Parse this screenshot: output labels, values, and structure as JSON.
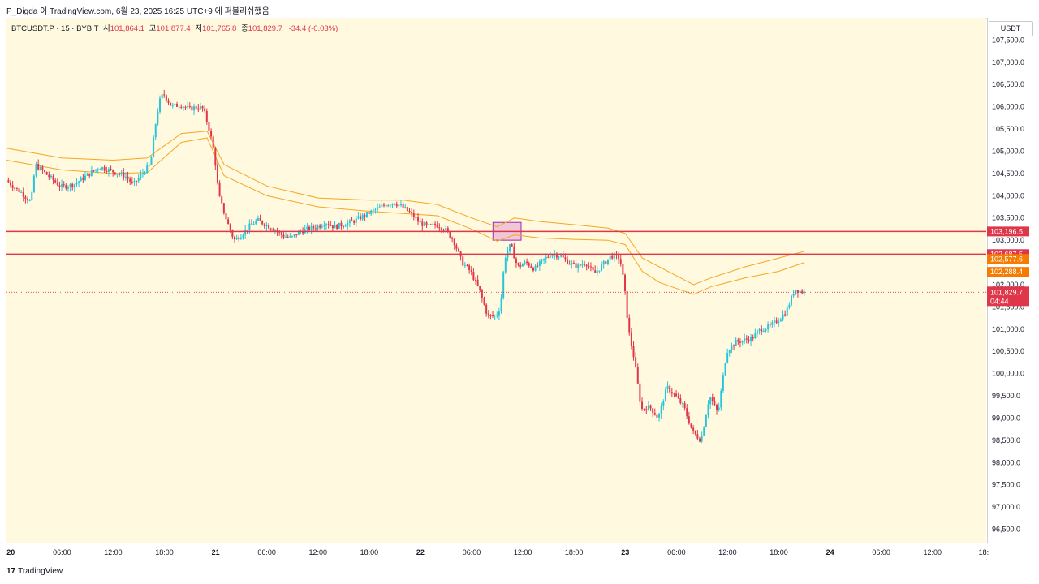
{
  "header": {
    "publish_line": "P_Digda 이 TradingView.com, 6월 23, 2025 16:25 UTC+9 에 퍼블리쉬했음"
  },
  "legend": {
    "symbol": "BTCUSDT.P · 15 · BYBIT",
    "open_label": "시",
    "open": "101,864.1",
    "high_label": "고",
    "high": "101,877.4",
    "low_label": "저",
    "low": "101,765.8",
    "close_label": "종",
    "close": "101,829.7",
    "change": "-34.4 (-0.03%)"
  },
  "currency_button": "USDT",
  "footer": {
    "logo": "17",
    "brand": "TradingView"
  },
  "colors": {
    "up": "#26c6da",
    "down": "#e0364a",
    "band": "#f5a623",
    "level_line": "#e0364a",
    "box_fill": "#e9b6d6",
    "box_stroke": "#9c27b0",
    "price_badge": "#e0364a",
    "band_badge": "#f57c00",
    "plot_bg": "#fff9df"
  },
  "chart_data": {
    "type": "candlestick",
    "symbol": "BTCUSDT.P",
    "interval": "15",
    "exchange": "BYBIT",
    "ylim": [
      96200,
      108000
    ],
    "y_ticks": [
      "107,500.0",
      "107,000.0",
      "106,500.0",
      "106,000.0",
      "105,500.0",
      "105,000.0",
      "104,500.0",
      "104,000.0",
      "103,500.0",
      "103,000.0",
      "102,000.0",
      "101,500.0",
      "101,000.0",
      "100,500.0",
      "100,000.0",
      "99,500.0",
      "99,000.0",
      "98,500.0",
      "98,000.0",
      "97,500.0",
      "97,000.0",
      "96,500.0"
    ],
    "y_tick_values": [
      107500,
      107000,
      106500,
      106000,
      105500,
      105000,
      104500,
      104000,
      103500,
      103000,
      102000,
      101500,
      101000,
      100500,
      100000,
      99500,
      99000,
      98500,
      98000,
      97500,
      97000,
      96500
    ],
    "x_ticks": [
      "20",
      "06:00",
      "12:00",
      "18:00",
      "21",
      "06:00",
      "12:00",
      "18:00",
      "22",
      "06:00",
      "12:00",
      "18:00",
      "23",
      "06:00",
      "12:00",
      "18:00",
      "24",
      "06:00",
      "12:00",
      "18:"
    ],
    "x_tick_hours": [
      0,
      6,
      12,
      18,
      24,
      30,
      36,
      42,
      48,
      54,
      60,
      66,
      72,
      78,
      84,
      90,
      96,
      102,
      108,
      114
    ],
    "x_range_hours": [
      -0.5,
      114.3
    ],
    "price_path": [
      [
        -0.4,
        104350
      ],
      [
        0.5,
        104200
      ],
      [
        1.5,
        104050
      ],
      [
        2.5,
        103850
      ],
      [
        3,
        104700
      ],
      [
        4.5,
        104450
      ],
      [
        6,
        104200
      ],
      [
        7.5,
        104250
      ],
      [
        9,
        104450
      ],
      [
        10.5,
        104650
      ],
      [
        12,
        104550
      ],
      [
        13.5,
        104450
      ],
      [
        14.5,
        104250
      ],
      [
        15.5,
        104500
      ],
      [
        16.5,
        104700
      ],
      [
        17,
        105500
      ],
      [
        17.5,
        106100
      ],
      [
        18,
        106300
      ],
      [
        19,
        106000
      ],
      [
        20,
        106050
      ],
      [
        21,
        105950
      ],
      [
        22,
        106000
      ],
      [
        22.7,
        105950
      ],
      [
        23.5,
        105400
      ],
      [
        24,
        104900
      ],
      [
        24.5,
        104000
      ],
      [
        25.5,
        103400
      ],
      [
        26.3,
        103000
      ],
      [
        27,
        103100
      ],
      [
        28,
        103300
      ],
      [
        29,
        103450
      ],
      [
        30,
        103350
      ],
      [
        31,
        103250
      ],
      [
        32,
        103100
      ],
      [
        33,
        103050
      ],
      [
        34,
        103200
      ],
      [
        35,
        103250
      ],
      [
        36,
        103300
      ],
      [
        37,
        103400
      ],
      [
        38,
        103300
      ],
      [
        39,
        103350
      ],
      [
        40,
        103400
      ],
      [
        41,
        103500
      ],
      [
        42,
        103600
      ],
      [
        43,
        103700
      ],
      [
        44,
        103800
      ],
      [
        45,
        103850
      ],
      [
        46,
        103750
      ],
      [
        47,
        103600
      ],
      [
        48,
        103400
      ],
      [
        49,
        103300
      ],
      [
        50,
        103350
      ],
      [
        51,
        103250
      ],
      [
        52,
        103000
      ],
      [
        53,
        102500
      ],
      [
        54,
        102300
      ],
      [
        55,
        101900
      ],
      [
        56,
        101300
      ],
      [
        57,
        101300
      ],
      [
        57.5,
        101500
      ],
      [
        58,
        102600
      ],
      [
        58.7,
        102900
      ],
      [
        59.5,
        102400
      ],
      [
        60.5,
        102500
      ],
      [
        61.5,
        102350
      ],
      [
        62.5,
        102550
      ],
      [
        63.5,
        102700
      ],
      [
        64.5,
        102650
      ],
      [
        65.5,
        102500
      ],
      [
        66.5,
        102400
      ],
      [
        67.5,
        102500
      ],
      [
        68.5,
        102250
      ],
      [
        69.5,
        102450
      ],
      [
        70.5,
        102650
      ],
      [
        71.5,
        102600
      ],
      [
        72,
        102000
      ],
      [
        72.5,
        101000
      ],
      [
        73.2,
        100300
      ],
      [
        74,
        99200
      ],
      [
        75,
        99250
      ],
      [
        76,
        99000
      ],
      [
        77,
        99700
      ],
      [
        78,
        99500
      ],
      [
        79,
        99250
      ],
      [
        80,
        98700
      ],
      [
        81,
        98500
      ],
      [
        82,
        99500
      ],
      [
        83,
        99100
      ],
      [
        84,
        100500
      ],
      [
        85,
        100700
      ],
      [
        86,
        100750
      ],
      [
        87,
        100800
      ],
      [
        88,
        101000
      ],
      [
        89,
        101050
      ],
      [
        90,
        101200
      ],
      [
        91,
        101400
      ],
      [
        92,
        101900
      ],
      [
        93,
        101830
      ]
    ],
    "band_upper": [
      [
        -0.5,
        105070
      ],
      [
        6,
        104850
      ],
      [
        12,
        104800
      ],
      [
        16,
        104850
      ],
      [
        20,
        105400
      ],
      [
        23,
        105450
      ],
      [
        25,
        104700
      ],
      [
        30,
        104220
      ],
      [
        36,
        103950
      ],
      [
        42,
        103900
      ],
      [
        46,
        103900
      ],
      [
        50,
        103800
      ],
      [
        54,
        103500
      ],
      [
        57,
        103300
      ],
      [
        59,
        103500
      ],
      [
        62,
        103420
      ],
      [
        66,
        103350
      ],
      [
        70,
        103270
      ],
      [
        72,
        103150
      ],
      [
        74,
        102600
      ],
      [
        76,
        102400
      ],
      [
        80,
        102000
      ],
      [
        82,
        102150
      ],
      [
        86,
        102400
      ],
      [
        90,
        102600
      ],
      [
        93,
        102750
      ]
    ],
    "band_lower": [
      [
        -0.5,
        104800
      ],
      [
        6,
        104580
      ],
      [
        12,
        104500
      ],
      [
        16,
        104520
      ],
      [
        20,
        105200
      ],
      [
        23,
        105300
      ],
      [
        25,
        104450
      ],
      [
        30,
        104000
      ],
      [
        36,
        103750
      ],
      [
        42,
        103650
      ],
      [
        46,
        103600
      ],
      [
        50,
        103550
      ],
      [
        54,
        103250
      ],
      [
        57,
        102980
      ],
      [
        59,
        103120
      ],
      [
        62,
        103050
      ],
      [
        66,
        103020
      ],
      [
        70,
        103000
      ],
      [
        72,
        102900
      ],
      [
        74,
        102300
      ],
      [
        76,
        102050
      ],
      [
        80,
        101780
      ],
      [
        82,
        101950
      ],
      [
        86,
        102150
      ],
      [
        90,
        102300
      ],
      [
        93,
        102500
      ]
    ],
    "levels": [
      {
        "price": 103196.5,
        "label": "103,196.5",
        "style": "solid"
      },
      {
        "price": 102687.5,
        "label": "102,687.5",
        "style": "solid"
      }
    ],
    "band_badges": [
      {
        "price": 102577.6,
        "label": "102,577.6"
      },
      {
        "price": 102288.4,
        "label": "102,288.4"
      }
    ],
    "last_price": {
      "price": 101829.7,
      "label": "101,829.7",
      "countdown": "04:44"
    },
    "highlight_box": {
      "x_hours": [
        56.5,
        59.8
      ],
      "price": [
        103000,
        103400
      ]
    }
  }
}
